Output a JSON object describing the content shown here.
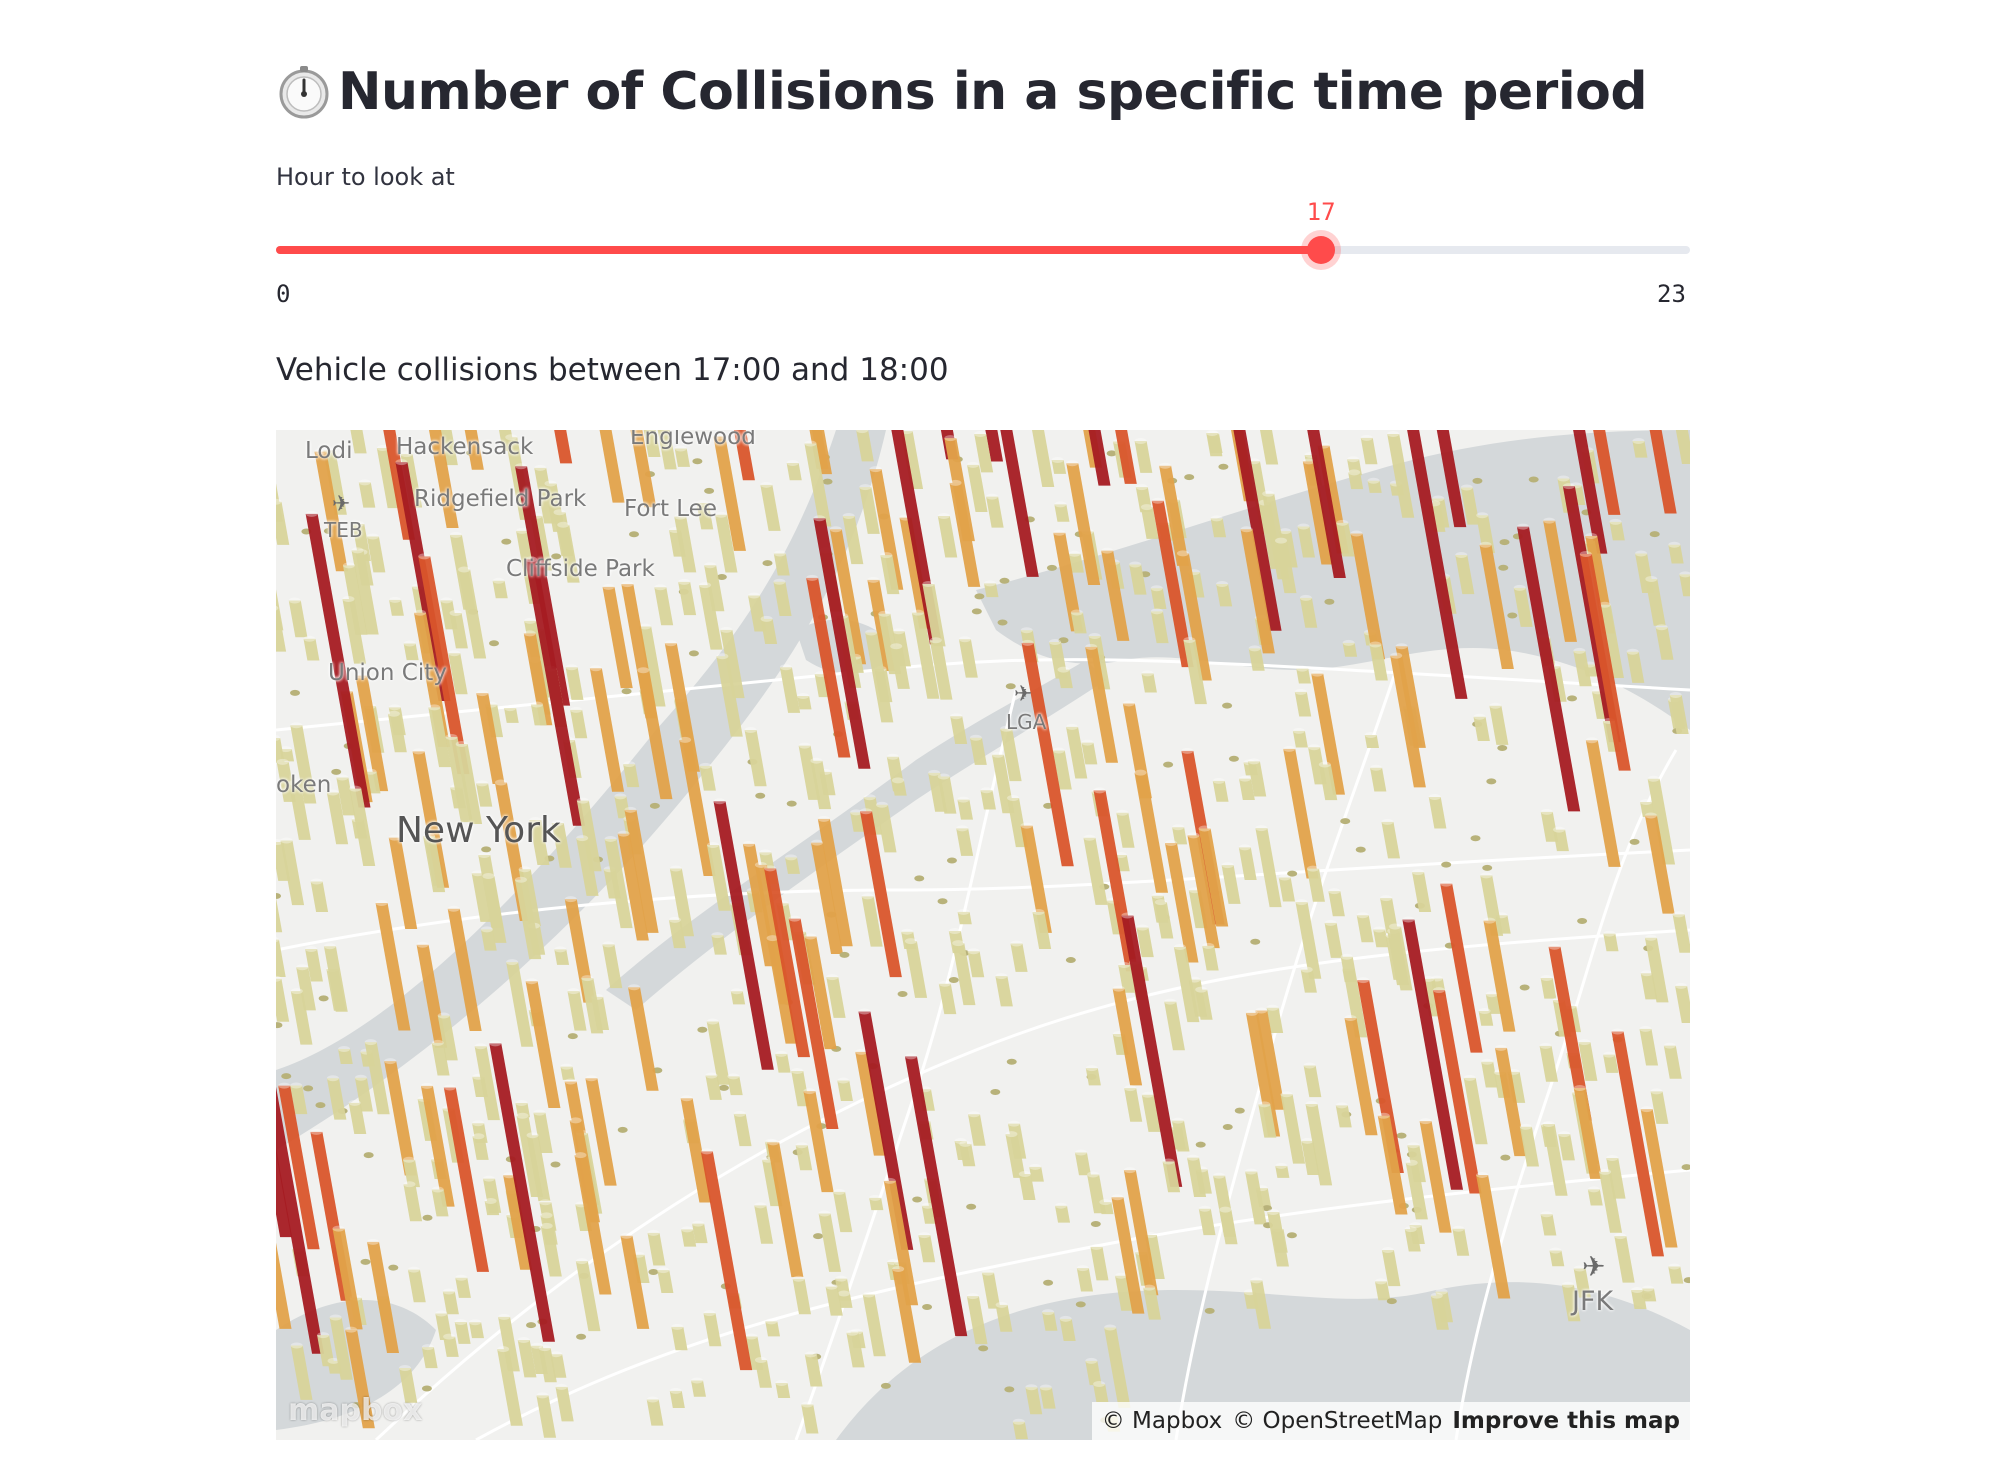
{
  "header": {
    "title": "Number of Collisions in a specific time period",
    "icon": "stopwatch-icon"
  },
  "slider": {
    "label": "Hour to look at",
    "value": 17,
    "value_label": "17",
    "min": 0,
    "max": 23,
    "min_label": "0",
    "max_label": "23",
    "accent_color": "#ff4b4b"
  },
  "subheading": "Vehicle collisions between 17:00 and 18:00",
  "map": {
    "places": {
      "lodi": "Lodi",
      "hackensack": "Hackensack",
      "englewood": "Englewood",
      "ridgefield_park": "Ridgefield Park",
      "fort_lee": "Fort Lee",
      "teb": "TEB",
      "cliffside_park": "Cliffside Park",
      "union_city": "Union City",
      "hoboken": "oken",
      "new_york": "New York",
      "lga": "LGA",
      "jfk": "JFK"
    },
    "attribution": {
      "mapbox": "© Mapbox",
      "osm": "© OpenStreetMap",
      "improve": "Improve this map"
    },
    "logo": "mapbox",
    "colors": {
      "low": "#d8d49a",
      "mid": "#e2a24a",
      "high": "#d9552b",
      "max": "#a51b22",
      "water": "#d4d8da",
      "land": "#f1f1ef"
    }
  }
}
